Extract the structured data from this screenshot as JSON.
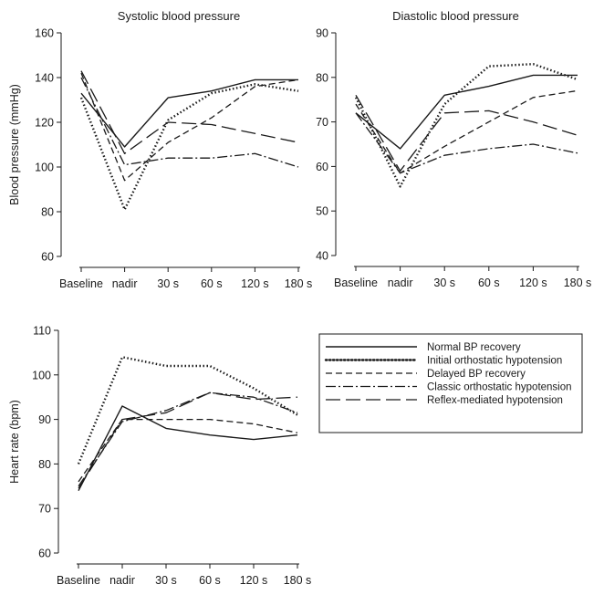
{
  "chart_data": [
    {
      "type": "line",
      "title": "Systolic blood pressure",
      "ylabel": "Blood pressure (mmHg)",
      "xlabel": "",
      "categories": [
        "Baseline",
        "nadir",
        "30 s",
        "60 s",
        "120 s",
        "180 s"
      ],
      "ylim": [
        60,
        160
      ],
      "yticks": [
        60,
        80,
        100,
        120,
        140,
        160
      ],
      "grid": false,
      "series": [
        {
          "name": "Normal BP recovery",
          "values": [
            133,
            109,
            131,
            134,
            139,
            139
          ]
        },
        {
          "name": "Initial orthostatic hypotension",
          "values": [
            131,
            81,
            121,
            133,
            137,
            134
          ]
        },
        {
          "name": "Delayed BP recovery",
          "values": [
            142,
            94,
            111,
            122,
            136,
            139
          ]
        },
        {
          "name": "Classic orthostatic hypotension",
          "values": [
            140,
            101,
            104,
            104,
            106,
            100
          ]
        },
        {
          "name": "Reflex-mediated hypotension",
          "values": [
            143,
            106,
            120,
            119,
            115,
            111
          ]
        }
      ]
    },
    {
      "type": "line",
      "title": "Diastolic blood pressure",
      "ylabel": "",
      "xlabel": "",
      "categories": [
        "Baseline",
        "nadir",
        "30 s",
        "60 s",
        "120 s",
        "180 s"
      ],
      "ylim": [
        40,
        90
      ],
      "yticks": [
        40,
        50,
        60,
        70,
        80,
        90
      ],
      "grid": false,
      "series": [
        {
          "name": "Normal BP recovery",
          "values": [
            72,
            64,
            76,
            78,
            80.5,
            80.5
          ]
        },
        {
          "name": "Initial orthostatic hypotension",
          "values": [
            75.5,
            55.5,
            74,
            82.5,
            83,
            79.5
          ]
        },
        {
          "name": "Delayed BP recovery",
          "values": [
            74,
            58.5,
            64.5,
            70,
            75.5,
            77
          ]
        },
        {
          "name": "Classic orthostatic hypotension",
          "values": [
            72,
            58.5,
            62.5,
            64,
            65,
            63
          ]
        },
        {
          "name": "Reflex-mediated hypotension",
          "values": [
            76,
            59,
            72,
            72.5,
            70,
            67
          ]
        }
      ]
    },
    {
      "type": "line",
      "title": "",
      "ylabel": "Heart rate (bpm)",
      "xlabel": "",
      "categories": [
        "Baseline",
        "nadir",
        "30 s",
        "60 s",
        "120 s",
        "180 s"
      ],
      "ylim": [
        60,
        110
      ],
      "yticks": [
        60,
        70,
        80,
        90,
        100,
        110
      ],
      "grid": false,
      "series": [
        {
          "name": "Normal BP recovery",
          "values": [
            74,
            93,
            88,
            86.5,
            85.5,
            86.5
          ]
        },
        {
          "name": "Initial orthostatic hypotension",
          "values": [
            80,
            104,
            102,
            102,
            97,
            91
          ]
        },
        {
          "name": "Delayed BP recovery",
          "values": [
            76,
            90,
            90,
            90,
            89,
            87
          ]
        },
        {
          "name": "Classic orthostatic hypotension",
          "values": [
            75,
            89.5,
            92,
            96,
            95,
            91.5
          ]
        },
        {
          "name": "Reflex-mediated hypotension",
          "values": [
            74.5,
            90,
            91.5,
            96,
            94.5,
            95
          ]
        }
      ]
    }
  ],
  "legend": {
    "placement": "right of heart rate panel",
    "entries": [
      {
        "label": "Normal BP recovery",
        "dash": "solid"
      },
      {
        "label": "Initial orthostatic hypotension",
        "dash": "dotted"
      },
      {
        "label": "Delayed BP recovery",
        "dash": "short-dash"
      },
      {
        "label": "Classic orthostatic hypotension",
        "dash": "dash-dot"
      },
      {
        "label": "Reflex-mediated hypotension",
        "dash": "long-dash"
      }
    ]
  },
  "colors": {
    "line": "#1a1a1a",
    "background": "#ffffff"
  }
}
